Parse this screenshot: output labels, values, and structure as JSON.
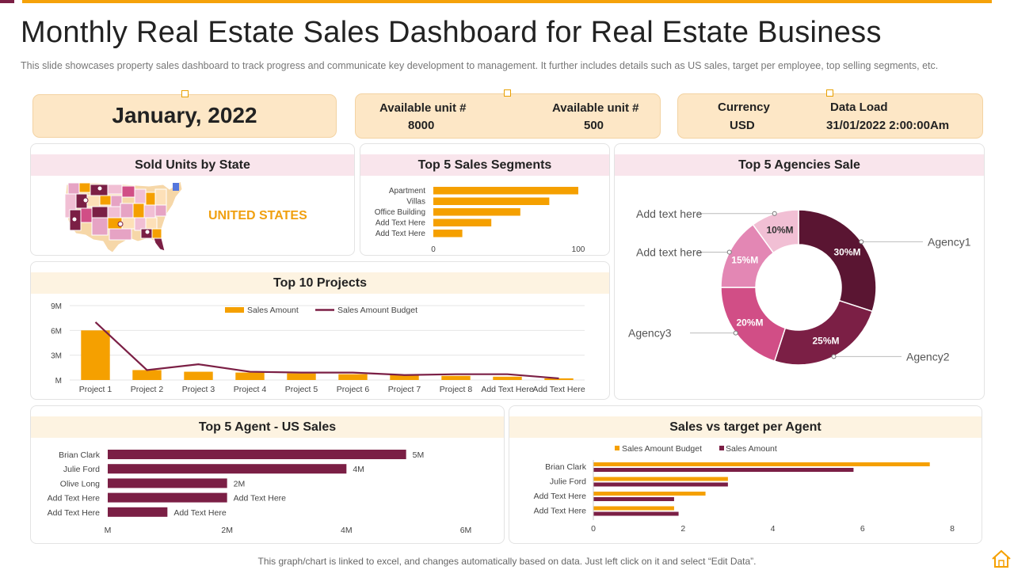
{
  "header": {
    "title": "Monthly Real Estate Sales Dashboard for Real Estate Business",
    "subtitle": "This slide showcases property sales dashboard to track progress and communicate key development  to management. It further includes details such as US sales, target per employee, top selling segments, etc."
  },
  "kpis": {
    "date": "January, 2022",
    "available_label_1": "Available unit #",
    "available_value_1": "8000",
    "available_label_2": "Available unit #",
    "available_value_2": "500",
    "currency_label": "Currency",
    "currency_value": "USD",
    "dataload_label": "Data Load",
    "dataload_value": "31/01/2022  2:00:00Am"
  },
  "cards": {
    "sold_units_title": "Sold Units by State",
    "sold_units_region": "UNITED STATES",
    "segments_title": "Top 5 Sales Segments",
    "agencies_title": "Top 5 Agencies Sale",
    "projects_title": "Top 10 Projects",
    "agent_us_title": "Top 5 Agent - US Sales",
    "sales_target_title": "Sales vs target per Agent"
  },
  "colors": {
    "orange": "#f5a000",
    "maroon": "#7b1f45",
    "dark_maroon": "#5a1532",
    "pink": "#d14e86",
    "light_pink": "#e387b4",
    "pale_pink": "#f1bfd4"
  },
  "footer": {
    "note": "This graph/chart is linked to excel,  and changes automatically based on data. Just left click on it and select “Edit Data”."
  },
  "chart_data": [
    {
      "id": "segments",
      "type": "bar",
      "orientation": "horizontal",
      "title": "Top 5 Sales Segments",
      "categories": [
        "Apartment",
        "Villas",
        "Office Building",
        "Add Text Here",
        "Add Text Here"
      ],
      "values": [
        100,
        80,
        60,
        40,
        20
      ],
      "xlim": [
        0,
        100
      ],
      "xticks": [
        "0",
        "100"
      ]
    },
    {
      "id": "agencies",
      "type": "pie",
      "donut": true,
      "title": "Top 5 Agencies Sale",
      "slices": [
        {
          "label": "Agency1",
          "value": 30,
          "text": "30%M"
        },
        {
          "label": "Agency2",
          "value": 25,
          "text": "25%M"
        },
        {
          "label": "Agency3",
          "value": 20,
          "text": "20%M"
        },
        {
          "label": "Add text here",
          "value": 15,
          "text": "15%M"
        },
        {
          "label": "Add text here",
          "value": 10,
          "text": "10%M"
        }
      ]
    },
    {
      "id": "projects",
      "type": "bar",
      "title": "Top 10 Projects",
      "categories": [
        "Project 1",
        "Project 2",
        "Project 3",
        "Project 4",
        "Project 5",
        "Project 6",
        "Project 7",
        "Project 8",
        "Add Text Here",
        "Add Text Here"
      ],
      "series": [
        {
          "name": "Sales Amount",
          "type": "bar",
          "values": [
            6.0,
            1.2,
            1.0,
            0.9,
            0.8,
            0.7,
            0.6,
            0.5,
            0.4,
            0.2
          ]
        },
        {
          "name": "Sales Amount Budget",
          "type": "line",
          "values": [
            7.0,
            1.2,
            1.9,
            1.0,
            0.9,
            0.9,
            0.6,
            0.7,
            0.7,
            0.2
          ]
        }
      ],
      "ylim": [
        0,
        9
      ],
      "yticks": [
        "M",
        "3M",
        "6M",
        "9M"
      ]
    },
    {
      "id": "agent_us",
      "type": "bar",
      "orientation": "horizontal",
      "title": "Top 5 Agent - US Sales",
      "categories": [
        "Brian Clark",
        "Julie Ford",
        "Olive Long",
        "Add Text Here",
        "Add Text Here"
      ],
      "values": [
        5,
        4,
        2,
        2,
        1
      ],
      "data_labels": [
        "5M",
        "4M",
        "2M",
        "Add Text Here",
        "Add Text Here"
      ],
      "xlim": [
        0,
        6
      ],
      "xticks": [
        "M",
        "2M",
        "4M",
        "6M"
      ]
    },
    {
      "id": "sales_target",
      "type": "bar",
      "orientation": "horizontal",
      "title": "Sales vs target per Agent",
      "categories": [
        "Brian Clark",
        "Julie Ford",
        "Add Text Here",
        "Add Text Here"
      ],
      "series": [
        {
          "name": "Sales Amount Budget",
          "values": [
            7.5,
            3.0,
            2.5,
            1.8
          ]
        },
        {
          "name": "Sales Amount",
          "values": [
            5.8,
            3.0,
            1.8,
            1.9
          ]
        }
      ],
      "xlim": [
        0,
        8
      ],
      "xticks": [
        "0",
        "2",
        "4",
        "6",
        "8"
      ]
    }
  ]
}
